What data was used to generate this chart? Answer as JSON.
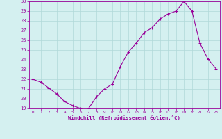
{
  "x": [
    0,
    1,
    2,
    3,
    4,
    5,
    6,
    7,
    8,
    9,
    10,
    11,
    12,
    13,
    14,
    15,
    16,
    17,
    18,
    19,
    20,
    21,
    22,
    23
  ],
  "y": [
    22.0,
    21.7,
    21.1,
    20.5,
    19.7,
    19.3,
    19.0,
    19.0,
    20.2,
    21.0,
    21.5,
    23.3,
    24.8,
    25.7,
    26.8,
    27.3,
    28.2,
    28.7,
    29.0,
    30.0,
    29.0,
    25.7,
    24.1,
    23.1
  ],
  "xlim": [
    -0.5,
    23.5
  ],
  "ylim": [
    19,
    30
  ],
  "yticks": [
    19,
    20,
    21,
    22,
    23,
    24,
    25,
    26,
    27,
    28,
    29,
    30
  ],
  "xticks": [
    0,
    1,
    2,
    3,
    4,
    5,
    6,
    7,
    8,
    9,
    10,
    11,
    12,
    13,
    14,
    15,
    16,
    17,
    18,
    19,
    20,
    21,
    22,
    23
  ],
  "xlabel": "Windchill (Refroidissement éolien,°C)",
  "line_color": "#990099",
  "marker": "+",
  "bg_color": "#d4f0f0",
  "grid_color": "#b0d8d8"
}
